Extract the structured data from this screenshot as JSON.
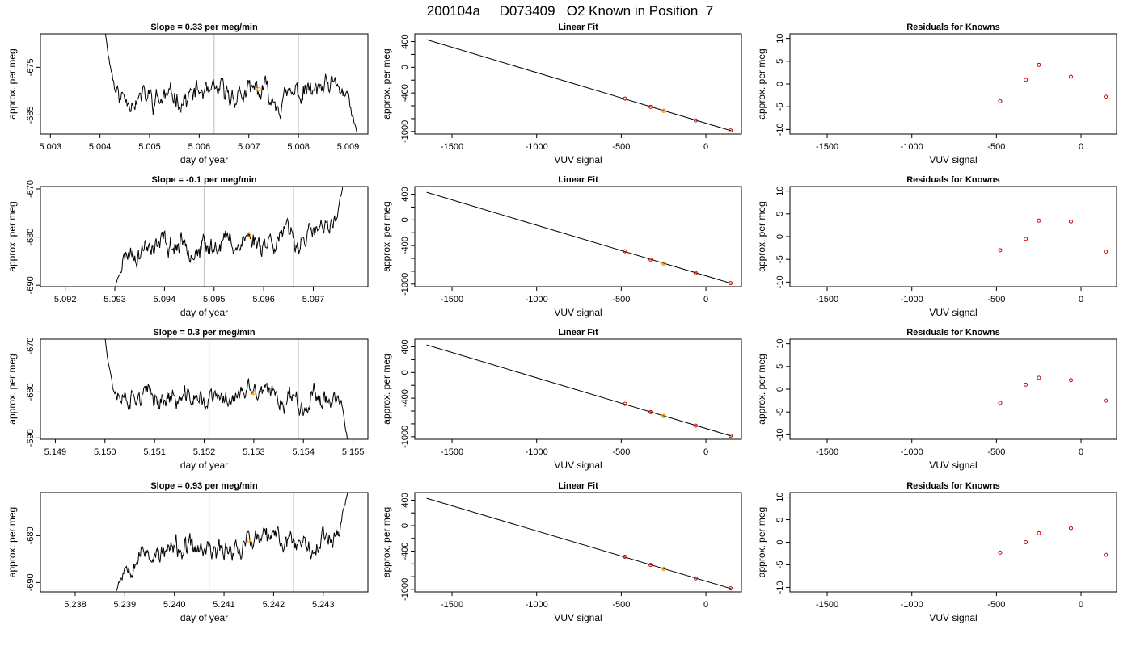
{
  "page_title": "200104a     D073409   O2 Known in Position  7",
  "chart_data": [
    {
      "type": "line",
      "panel": "timeseries",
      "row": 0,
      "title": "Slope =  0.33  per meg/min",
      "xlabel": "day of year",
      "ylabel": "approx. per meg",
      "xlim": [
        5.0028,
        5.0094
      ],
      "ylim": [
        -689,
        -668
      ],
      "xticks": [
        "5.003",
        "5.004",
        "5.005",
        "5.006",
        "5.007",
        "5.008",
        "5.009"
      ],
      "xtick_values": [
        5.003,
        5.004,
        5.005,
        5.006,
        5.007,
        5.008,
        5.009
      ],
      "yticks": [
        "-675",
        "-685"
      ],
      "ytick_values": [
        -675,
        -685
      ],
      "vlines": [
        5.0063,
        5.008
      ],
      "marker": {
        "x": 5.0072,
        "y": -679.6,
        "color": "#ff9900"
      },
      "series": [
        {
          "x0": 5.0041,
          "x1": 5.0092,
          "start": -667,
          "end": -690,
          "mean": -680.8,
          "rise": 0.33,
          "amp": 1.6,
          "seed": 11
        }
      ]
    },
    {
      "type": "line",
      "panel": "timeseries",
      "row": 1,
      "title": "Slope =  -0.1  per meg/min",
      "xlabel": "day of year",
      "ylabel": "approx. per meg",
      "xlim": [
        5.0915,
        5.0981
      ],
      "ylim": [
        -690.3,
        -669.5
      ],
      "xticks": [
        "5.092",
        "5.093",
        "5.094",
        "5.095",
        "5.096",
        "5.097"
      ],
      "xtick_values": [
        5.092,
        5.093,
        5.094,
        5.095,
        5.096,
        5.097
      ],
      "yticks": [
        "-670",
        "-680",
        "-690"
      ],
      "ytick_values": [
        -670,
        -680,
        -690
      ],
      "vlines": [
        5.0948,
        5.0966
      ],
      "marker": {
        "x": 5.0957,
        "y": -679.6,
        "color": "#ff9900"
      },
      "series": [
        {
          "x0": 5.093,
          "x1": 5.0976,
          "start": -691,
          "end": -669,
          "mean": -681.0,
          "rise": 4.5,
          "amp": 1.5,
          "seed": 23
        }
      ]
    },
    {
      "type": "line",
      "panel": "timeseries",
      "row": 2,
      "title": "Slope =  0.3  per meg/min",
      "xlabel": "day of year",
      "ylabel": "approx. per meg",
      "xlim": [
        5.1487,
        5.1553
      ],
      "ylim": [
        -690.3,
        -668.5
      ],
      "xticks": [
        "5.149",
        "5.150",
        "5.151",
        "5.152",
        "5.153",
        "5.154",
        "5.155"
      ],
      "xtick_values": [
        5.149,
        5.15,
        5.151,
        5.152,
        5.153,
        5.154,
        5.155
      ],
      "yticks": [
        "-670",
        "-680",
        "-690"
      ],
      "ytick_values": [
        -670,
        -680,
        -690
      ],
      "vlines": [
        5.1521,
        5.1539
      ],
      "marker": {
        "x": 5.153,
        "y": -680.2,
        "color": "#ff9900"
      },
      "series": [
        {
          "x0": 5.15,
          "x1": 5.1549,
          "start": -668,
          "end": -691,
          "mean": -681.3,
          "rise": 0.8,
          "amp": 1.5,
          "seed": 37
        }
      ]
    },
    {
      "type": "line",
      "panel": "timeseries",
      "row": 3,
      "title": "Slope =  0.93  per meg/min",
      "xlabel": "day of year",
      "ylabel": "approx. per meg",
      "xlim": [
        5.2373,
        5.2439
      ],
      "ylim": [
        -692,
        -670.8
      ],
      "xticks": [
        "5.238",
        "5.239",
        "5.240",
        "5.241",
        "5.242",
        "5.243"
      ],
      "xtick_values": [
        5.238,
        5.239,
        5.24,
        5.241,
        5.242,
        5.243
      ],
      "yticks": [
        "-680",
        "-690"
      ],
      "ytick_values": [
        -680,
        -690
      ],
      "vlines": [
        5.2407,
        5.2424
      ],
      "marker": {
        "x": 5.2415,
        "y": -681.0,
        "color": "#ff9900"
      },
      "series": [
        {
          "x0": 5.2388,
          "x1": 5.2435,
          "start": -693,
          "end": -670,
          "mean": -682.2,
          "rise": 5.0,
          "amp": 1.5,
          "seed": 53
        }
      ]
    },
    {
      "type": "scatter",
      "panel": "fit",
      "row": 0,
      "title": "Linear Fit",
      "xlabel": "VUV signal",
      "ylabel": "approx. per meg",
      "xlim": [
        -1720,
        210
      ],
      "ylim": [
        -1040,
        520
      ],
      "xticks": [
        "-1500",
        "-1000",
        "-500",
        "0"
      ],
      "xtick_values": [
        -1500,
        -1000,
        -500,
        0
      ],
      "yticks": [
        "400",
        "0",
        "-400",
        "-1000"
      ],
      "ytick_values": [
        400,
        0,
        -400,
        -1000
      ],
      "minor_yticks": [
        200,
        -200,
        -600,
        -800
      ],
      "fit_line": {
        "x": [
          -1650,
          150
        ],
        "y": [
          430,
          -990
        ]
      },
      "points": {
        "x": [
          -478,
          -327,
          -60,
          146
        ],
        "y": [
          -488,
          -617,
          -828,
          -985
        ]
      },
      "highlight": {
        "x": -249,
        "y": -678,
        "color": "#ff9900"
      }
    },
    {
      "type": "scatter",
      "panel": "fit",
      "row": 1,
      "title": "Linear Fit",
      "xlabel": "VUV signal",
      "ylabel": "approx. per meg",
      "xlim": [
        -1720,
        210
      ],
      "ylim": [
        -1040,
        520
      ],
      "xticks": [
        "-1500",
        "-1000",
        "-500",
        "0"
      ],
      "xtick_values": [
        -1500,
        -1000,
        -500,
        0
      ],
      "yticks": [
        "400",
        "0",
        "-400",
        "-1000"
      ],
      "ytick_values": [
        400,
        0,
        -400,
        -1000
      ],
      "minor_yticks": [
        200,
        -200,
        -600,
        -800
      ],
      "fit_line": {
        "x": [
          -1650,
          150
        ],
        "y": [
          430,
          -990
        ]
      },
      "points": {
        "x": [
          -478,
          -327,
          -60,
          146
        ],
        "y": [
          -488,
          -617,
          -828,
          -985
        ]
      },
      "highlight": {
        "x": -249,
        "y": -678,
        "color": "#ff9900"
      }
    },
    {
      "type": "scatter",
      "panel": "fit",
      "row": 2,
      "title": "Linear Fit",
      "xlabel": "VUV signal",
      "ylabel": "approx. per meg",
      "xlim": [
        -1720,
        210
      ],
      "ylim": [
        -1040,
        520
      ],
      "xticks": [
        "-1500",
        "-1000",
        "-500",
        "0"
      ],
      "xtick_values": [
        -1500,
        -1000,
        -500,
        0
      ],
      "yticks": [
        "400",
        "0",
        "-400",
        "-1000"
      ],
      "ytick_values": [
        400,
        0,
        -400,
        -1000
      ],
      "minor_yticks": [
        200,
        -200,
        -600,
        -800
      ],
      "fit_line": {
        "x": [
          -1650,
          150
        ],
        "y": [
          430,
          -990
        ]
      },
      "points": {
        "x": [
          -478,
          -327,
          -60,
          146
        ],
        "y": [
          -488,
          -617,
          -828,
          -985
        ]
      },
      "highlight": {
        "x": -249,
        "y": -678,
        "color": "#ff9900"
      }
    },
    {
      "type": "scatter",
      "panel": "fit",
      "row": 3,
      "title": "Linear Fit",
      "xlabel": "VUV signal",
      "ylabel": "approx. per meg",
      "xlim": [
        -1720,
        210
      ],
      "ylim": [
        -1040,
        520
      ],
      "xticks": [
        "-1500",
        "-1000",
        "-500",
        "0"
      ],
      "xtick_values": [
        -1500,
        -1000,
        -500,
        0
      ],
      "yticks": [
        "400",
        "0",
        "-400",
        "-1000"
      ],
      "ytick_values": [
        400,
        0,
        -400,
        -1000
      ],
      "minor_yticks": [
        200,
        -200,
        -600,
        -800
      ],
      "fit_line": {
        "x": [
          -1650,
          150
        ],
        "y": [
          430,
          -990
        ]
      },
      "points": {
        "x": [
          -478,
          -327,
          -60,
          146
        ],
        "y": [
          -488,
          -617,
          -828,
          -985
        ]
      },
      "highlight": {
        "x": -249,
        "y": -678,
        "color": "#ff9900"
      }
    },
    {
      "type": "scatter",
      "panel": "residuals",
      "row": 0,
      "title": "Residuals for Knowns",
      "xlabel": "VUV signal",
      "ylabel": "approx. per meg",
      "xlim": [
        -1720,
        210
      ],
      "ylim": [
        -11,
        11
      ],
      "xticks": [
        "-1500",
        "-1000",
        "-500",
        "0"
      ],
      "xtick_values": [
        -1500,
        -1000,
        -500,
        0
      ],
      "yticks": [
        "10",
        "5",
        "0",
        "-5",
        "-10"
      ],
      "ytick_values": [
        10,
        5,
        0,
        -5,
        -10
      ],
      "points": {
        "x": [
          -478,
          -327,
          -249,
          -60,
          146
        ],
        "y": [
          -3.8,
          0.9,
          4.2,
          1.6,
          -2.8
        ]
      }
    },
    {
      "type": "scatter",
      "panel": "residuals",
      "row": 1,
      "title": "Residuals for Knowns",
      "xlabel": "VUV signal",
      "ylabel": "approx. per meg",
      "xlim": [
        -1720,
        210
      ],
      "ylim": [
        -11,
        11
      ],
      "xticks": [
        "-1500",
        "-1000",
        "-500",
        "0"
      ],
      "xtick_values": [
        -1500,
        -1000,
        -500,
        0
      ],
      "yticks": [
        "10",
        "5",
        "0",
        "-5",
        "-10"
      ],
      "ytick_values": [
        10,
        5,
        0,
        -5,
        -10
      ],
      "points": {
        "x": [
          -478,
          -327,
          -249,
          -60,
          146
        ],
        "y": [
          -3.0,
          -0.5,
          3.5,
          3.3,
          -3.3
        ]
      }
    },
    {
      "type": "scatter",
      "panel": "residuals",
      "row": 2,
      "title": "Residuals for Knowns",
      "xlabel": "VUV signal",
      "ylabel": "approx. per meg",
      "xlim": [
        -1720,
        210
      ],
      "ylim": [
        -11,
        11
      ],
      "xticks": [
        "-1500",
        "-1000",
        "-500",
        "0"
      ],
      "xtick_values": [
        -1500,
        -1000,
        -500,
        0
      ],
      "yticks": [
        "10",
        "5",
        "0",
        "-5",
        "-10"
      ],
      "ytick_values": [
        10,
        5,
        0,
        -5,
        -10
      ],
      "points": {
        "x": [
          -478,
          -327,
          -249,
          -60,
          146
        ],
        "y": [
          -3.0,
          1.0,
          2.5,
          2.0,
          -2.5
        ]
      }
    },
    {
      "type": "scatter",
      "panel": "residuals",
      "row": 3,
      "title": "Residuals for Knowns",
      "xlabel": "VUV signal",
      "ylabel": "approx. per meg",
      "xlim": [
        -1720,
        210
      ],
      "ylim": [
        -11,
        11
      ],
      "xticks": [
        "-1500",
        "-1000",
        "-500",
        "0"
      ],
      "xtick_values": [
        -1500,
        -1000,
        -500,
        0
      ],
      "yticks": [
        "10",
        "5",
        "0",
        "-5",
        "-10"
      ],
      "ytick_values": [
        10,
        5,
        0,
        -5,
        -10
      ],
      "points": {
        "x": [
          -478,
          -327,
          -249,
          -60,
          146
        ],
        "y": [
          -2.3,
          0.0,
          2.0,
          3.1,
          -2.8
        ]
      }
    }
  ],
  "colors": {
    "line": "#000000",
    "vline": "#c8c8c8",
    "point": "#cc0000",
    "highlight": "#ff9900"
  }
}
